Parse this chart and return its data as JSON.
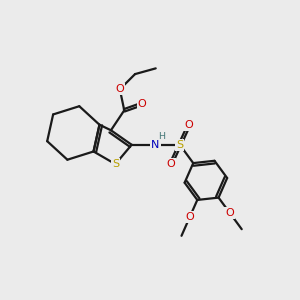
{
  "background_color": "#ebebeb",
  "bond_color": "#1a1a1a",
  "S_color": "#b8a000",
  "O_color": "#cc0000",
  "N_color": "#0000bb",
  "H_color": "#447777",
  "line_width": 1.6,
  "figsize": [
    3.0,
    3.0
  ],
  "dpi": 100,
  "xlim": [
    0,
    10
  ],
  "ylim": [
    0,
    10
  ]
}
